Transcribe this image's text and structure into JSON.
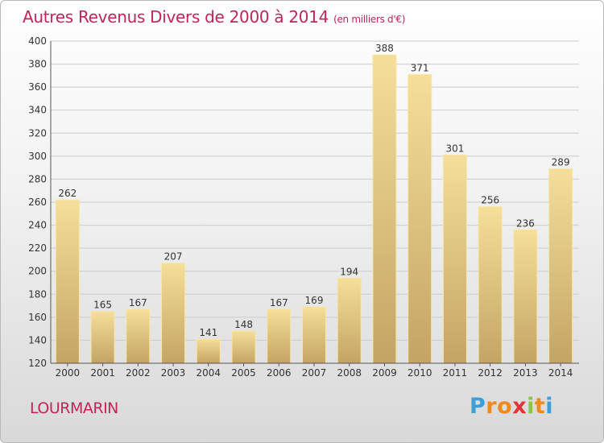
{
  "header": {
    "title": "Autres Revenus Divers de 2000 à 2014",
    "unit": "(en milliers d'€)"
  },
  "footer": {
    "city": "LOURMARIN",
    "logo_letters": [
      "P",
      "r",
      "o",
      "x",
      "i",
      "t",
      "i"
    ],
    "logo_colors": [
      "#3b9fd8",
      "#f08a1c",
      "#f08a1c",
      "#e53235",
      "#8cc63f",
      "#f08a1c",
      "#3b9fd8"
    ]
  },
  "colors": {
    "title": "#c02656",
    "bar_light": "#f5df9a",
    "bar_dark": "#c4a464",
    "grid": "#cccccc"
  },
  "chart_data": {
    "type": "bar",
    "title": "Autres Revenus Divers de 2000 à 2014",
    "subtitle": "(en milliers d'€)",
    "xlabel": "",
    "ylabel": "",
    "categories": [
      "2000",
      "2001",
      "2002",
      "2003",
      "2004",
      "2005",
      "2006",
      "2007",
      "2008",
      "2009",
      "2010",
      "2011",
      "2012",
      "2013",
      "2014"
    ],
    "values": [
      262,
      165,
      167,
      207,
      141,
      148,
      167,
      169,
      194,
      388,
      371,
      301,
      256,
      236,
      289
    ],
    "ylim": [
      120,
      400
    ],
    "yticks": [
      120,
      140,
      160,
      180,
      200,
      220,
      240,
      260,
      280,
      300,
      320,
      340,
      360,
      380,
      400
    ],
    "grid": true,
    "legend": "none"
  }
}
